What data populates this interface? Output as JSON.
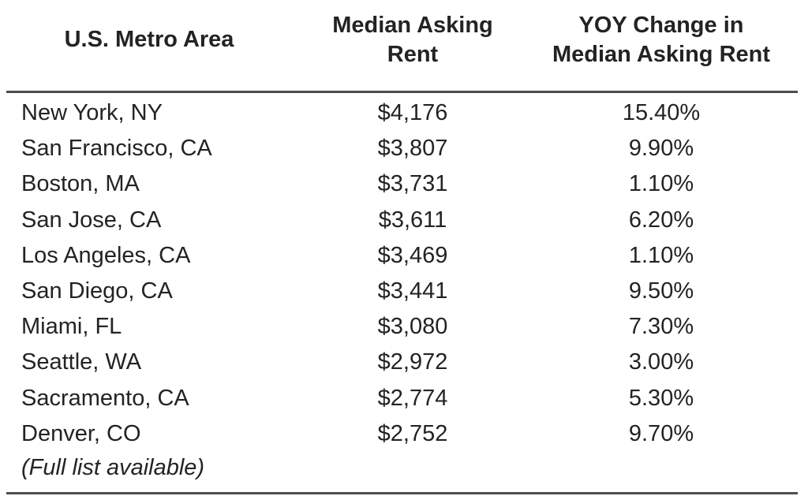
{
  "table": {
    "headers": [
      {
        "id": "metro",
        "lines": [
          "U.S. Metro Area"
        ]
      },
      {
        "id": "rent",
        "lines": [
          "Median Asking",
          "Rent"
        ]
      },
      {
        "id": "yoy",
        "lines": [
          "YOY Change in",
          "Median Asking Rent"
        ]
      }
    ],
    "rows": [
      {
        "metro": "New York, NY",
        "rent": "$4,176",
        "yoy": "15.40%"
      },
      {
        "metro": "San Francisco, CA",
        "rent": "$3,807",
        "yoy": "9.90%"
      },
      {
        "metro": "Boston, MA",
        "rent": "$3,731",
        "yoy": "1.10%"
      },
      {
        "metro": "San Jose, CA",
        "rent": "$3,611",
        "yoy": "6.20%"
      },
      {
        "metro": "Los Angeles, CA",
        "rent": "$3,469",
        "yoy": "1.10%"
      },
      {
        "metro": "San Diego, CA",
        "rent": "$3,441",
        "yoy": "9.50%"
      },
      {
        "metro": "Miami, FL",
        "rent": "$3,080",
        "yoy": "7.30%"
      },
      {
        "metro": "Seattle, WA",
        "rent": "$2,972",
        "yoy": "3.00%"
      },
      {
        "metro": "Sacramento, CA",
        "rent": "$2,774",
        "yoy": "5.30%"
      },
      {
        "metro": "Denver, CO",
        "rent": "$2,752",
        "yoy": "9.70%"
      }
    ],
    "footnote": "(Full list available)",
    "colors": {
      "text": "#232323",
      "rule": "#4d4d4d",
      "background": "#ffffff"
    }
  },
  "chart_data": {
    "type": "table",
    "title": "",
    "columns": [
      "U.S. Metro Area",
      "Median Asking Rent",
      "YOY Change in Median Asking Rent"
    ],
    "categories": [
      "New York, NY",
      "San Francisco, CA",
      "Boston, MA",
      "San Jose, CA",
      "Los Angeles, CA",
      "San Diego, CA",
      "Miami, FL",
      "Seattle, WA",
      "Sacramento, CA",
      "Denver, CO"
    ],
    "series": [
      {
        "name": "Median Asking Rent (USD)",
        "values": [
          4176,
          3807,
          3731,
          3611,
          3469,
          3441,
          3080,
          2972,
          2774,
          2752
        ]
      },
      {
        "name": "YOY Change in Median Asking Rent (%)",
        "values": [
          15.4,
          9.9,
          1.1,
          6.2,
          1.1,
          9.5,
          7.3,
          3.0,
          5.3,
          9.7
        ]
      }
    ],
    "annotations": [
      "(Full list available)"
    ]
  }
}
